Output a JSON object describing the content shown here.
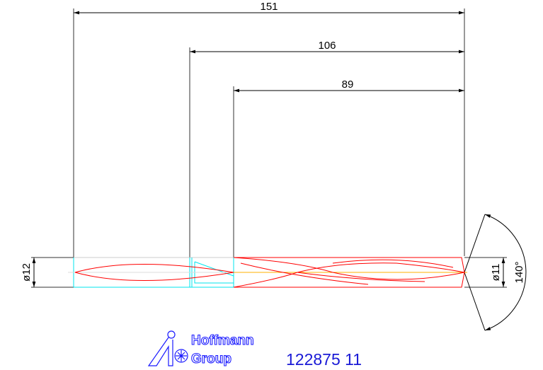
{
  "dimensions": {
    "overall_length": "151",
    "flute_plus_neck_length": "106",
    "flute_length": "89",
    "shank_diameter": "ø12",
    "cutting_diameter": "ø11",
    "point_angle": "140°"
  },
  "logo": {
    "line1": "Hoffmann",
    "line2": "Group"
  },
  "article_number": "122875 11",
  "colors": {
    "dimension": "#000000",
    "shank": "#00e5ee",
    "flute": "#ff0000",
    "centerline": "#ffb000",
    "brand": "#1a1ad6"
  }
}
